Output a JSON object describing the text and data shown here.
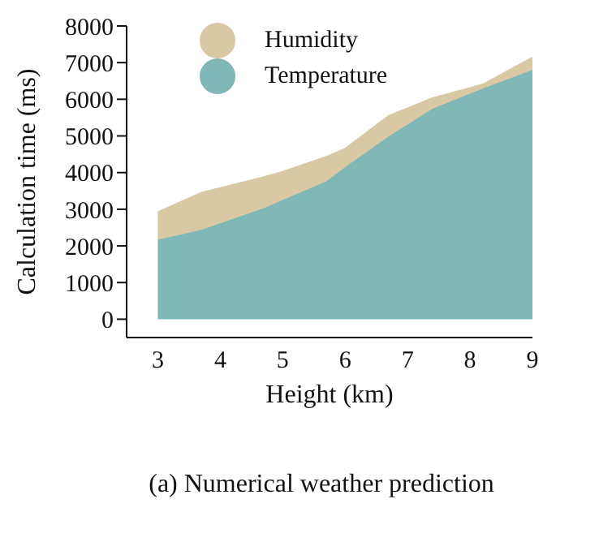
{
  "chart_data": {
    "type": "area",
    "title": "(a) Numerical weather prediction",
    "xlabel": "Height (km)",
    "ylabel": "Calculation time (ms)",
    "stacked": true,
    "x": [
      3,
      3.7,
      4.7,
      5,
      5.7,
      6,
      6.7,
      7.4,
      8.2,
      9
    ],
    "series": [
      {
        "name": "Temperature",
        "color": "#7fb8b6",
        "values": [
          2170,
          2440,
          3030,
          3250,
          3760,
          4150,
          4990,
          5740,
          6290,
          6800
        ]
      },
      {
        "name": "Humidity",
        "color": "#d9c8a4",
        "values": [
          750,
          1010,
          850,
          770,
          670,
          500,
          560,
          290,
          110,
          340
        ]
      }
    ],
    "xlim": [
      2.5,
      9
    ],
    "xticks": [
      3,
      4,
      5,
      6,
      7,
      8,
      9
    ],
    "ylim": [
      -500,
      8000
    ],
    "yticks": [
      0,
      1000,
      2000,
      3000,
      4000,
      5000,
      6000,
      7000,
      8000
    ],
    "grid": false,
    "legend": "top left"
  }
}
